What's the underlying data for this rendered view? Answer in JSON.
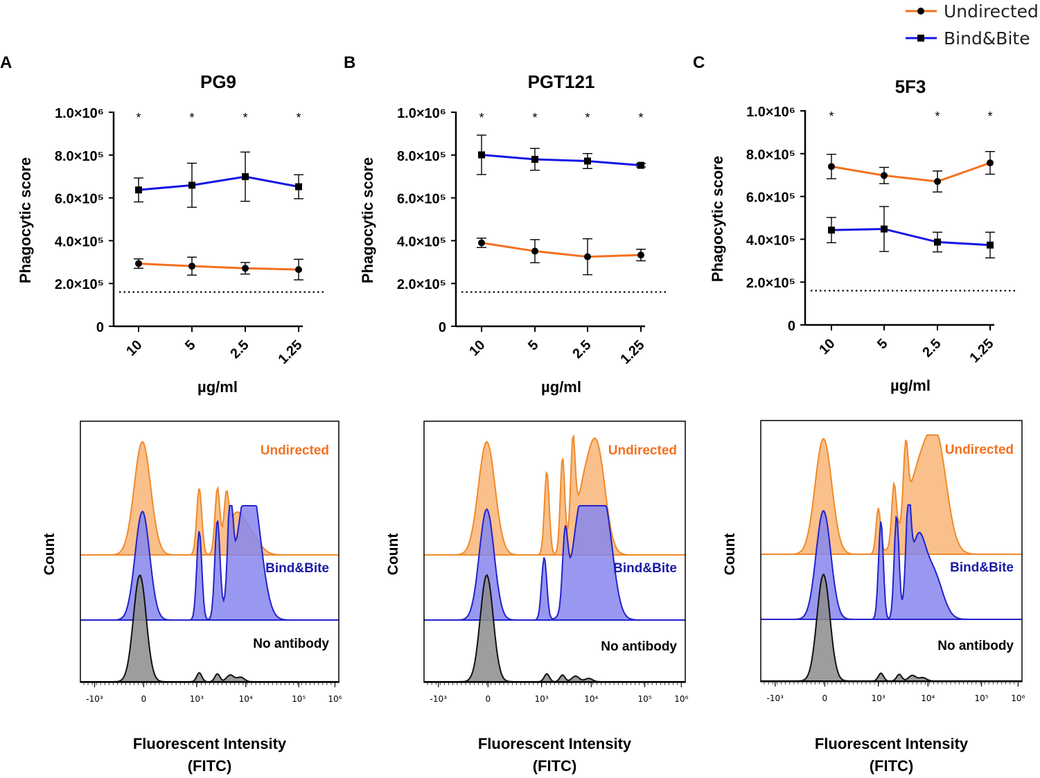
{
  "legend": [
    {
      "label": "Undirected",
      "color": "#f4701f",
      "marker": "circle"
    },
    {
      "label": "Bind&Bite",
      "color": "#1414e6",
      "marker": "square"
    }
  ],
  "chart_data": [
    {
      "type": "line",
      "panel": "A",
      "title": "PG9",
      "xlabel": "µg/ml",
      "ylabel": "Phagocytic score",
      "categories": [
        "10",
        "5",
        "2.5",
        "1.25"
      ],
      "ylim": [
        0,
        1000000
      ],
      "ytick_labels": [
        "0",
        "2.0×10⁵",
        "4.0×10⁵",
        "6.0×10⁵",
        "8.0×10⁵",
        "1.0×10⁶"
      ],
      "baseline": 160000,
      "significance": [
        "*",
        "*",
        "*",
        "*"
      ],
      "series": [
        {
          "name": "Undirected",
          "values": [
            293000,
            281000,
            271000,
            265000
          ],
          "errors": [
            22000,
            42000,
            27000,
            48000
          ]
        },
        {
          "name": "Bind&Bite",
          "values": [
            637000,
            659000,
            699000,
            652000
          ],
          "errors": [
            56000,
            103000,
            115000,
            56000
          ]
        }
      ]
    },
    {
      "type": "line",
      "panel": "B",
      "title": "PGT121",
      "xlabel": "µg/ml",
      "ylabel": "Phagocytic score",
      "categories": [
        "10",
        "5",
        "2.5",
        "1.25"
      ],
      "ylim": [
        0,
        1000000
      ],
      "ytick_labels": [
        "0",
        "2.0×10⁵",
        "4.0×10⁵",
        "6.0×10⁵",
        "8.0×10⁵",
        "1.0×10⁶"
      ],
      "baseline": 160000,
      "significance": [
        "*",
        "*",
        "*",
        "*"
      ],
      "series": [
        {
          "name": "Undirected",
          "values": [
            390000,
            351000,
            325000,
            333000
          ],
          "errors": [
            22000,
            54000,
            84000,
            27000
          ]
        },
        {
          "name": "Bind&Bite",
          "values": [
            801000,
            780000,
            772000,
            752000
          ],
          "errors": [
            92000,
            51000,
            35000,
            8000
          ]
        }
      ]
    },
    {
      "type": "line",
      "panel": "C",
      "title": "5F3",
      "xlabel": "µg/ml",
      "ylabel": "Phagocytic score",
      "categories": [
        "10",
        "5",
        "2.5",
        "1.25"
      ],
      "ylim": [
        0,
        1000000
      ],
      "ytick_labels": [
        "0",
        "2.0×10⁵",
        "4.0×10⁵",
        "6.0×10⁵",
        "8.0×10⁵",
        "1.0×10⁶"
      ],
      "baseline": 160000,
      "significance": [
        "*",
        "",
        "*",
        "*"
      ],
      "series": [
        {
          "name": "Undirected",
          "values": [
            740000,
            698000,
            670000,
            757000
          ],
          "errors": [
            57000,
            38000,
            49000,
            53000
          ]
        },
        {
          "name": "Bind&Bite",
          "values": [
            443000,
            448000,
            387000,
            373000
          ],
          "errors": [
            59000,
            105000,
            46000,
            60000
          ]
        }
      ]
    }
  ],
  "histograms": {
    "type": "histogram-overlay",
    "xlabel": [
      "Fluorescent Intensity",
      "(FITC)"
    ],
    "ylabel": "Count",
    "tick_labels": [
      "-10³",
      "0",
      "10³",
      "10⁴",
      "10⁵",
      "10⁶"
    ],
    "tracks": [
      {
        "label": "Undirected",
        "fill": "#f8b577",
        "stroke": "#f08a2a",
        "label_color": "#f4701f"
      },
      {
        "label": "Bind&Bite",
        "fill": "#8686ee",
        "stroke": "#2222cc",
        "label_color": "#1a1aa8"
      },
      {
        "label": "No antibody",
        "fill": "#8c8c8c",
        "stroke": "#111111",
        "label_color": "#000000"
      }
    ]
  }
}
